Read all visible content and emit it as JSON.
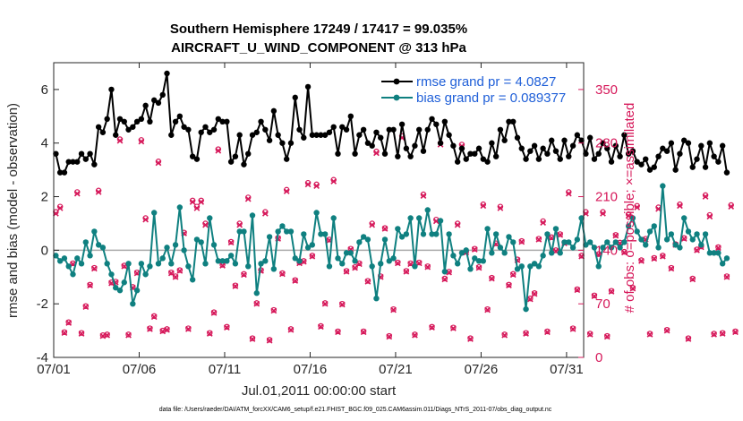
{
  "chart_data": {
    "type": "line",
    "title_line1": "Southern Hemisphere 17249 / 17417 = 99.035%",
    "title_line2": "AIRCRAFT_U_WIND_COMPONENT @ 313 hPa",
    "xlabel": "Jul.01,2011 00:00:00 start",
    "ylabel_left": "rmse and bias (model - observation)",
    "ylabel_right": "# of obs: o=possible; ×=assimilated",
    "footnote": "data file: /Users/raeder/DAI/ATM_forcXX/CAM6_setup/f.e21.FHIST_BGC.f09_025.CAM6assim.011/Diags_NTrS_2011-07/obs_diag_output.nc",
    "xlim": [
      0,
      31
    ],
    "ylim_left": [
      -4,
      7
    ],
    "ylim_right": [
      0,
      385
    ],
    "x_ticks": [
      0,
      5,
      10,
      15,
      20,
      25,
      30
    ],
    "x_tick_labels": [
      "07/01",
      "07/06",
      "07/11",
      "07/16",
      "07/21",
      "07/26",
      "07/31"
    ],
    "y_left_ticks": [
      -4,
      -2,
      0,
      2,
      4,
      6
    ],
    "y_left_tick_labels": [
      "-4",
      "-2",
      "0",
      "2",
      "4",
      "6"
    ],
    "y_right_ticks": [
      0,
      70,
      140,
      210,
      280,
      350
    ],
    "y_right_tick_labels": [
      "0",
      "70",
      "140",
      "210",
      "280",
      "350"
    ],
    "legend": {
      "placement": "top-right",
      "entries": [
        "rmse grand pr = 4.0827",
        "bias grand pr = 0.089377"
      ]
    },
    "colors": {
      "rmse": "#000000",
      "bias": "#0f8080",
      "obs": "#d6185a",
      "zero_line": "#aaaaaa",
      "legend_text": "#1f5fd8"
    },
    "dt_days": 0.25,
    "series": [
      {
        "name": "rmse",
        "values": [
          3.6,
          2.9,
          2.9,
          3.3,
          3.3,
          3.3,
          3.6,
          3.4,
          3.6,
          3.2,
          4.6,
          4.4,
          4.9,
          6.0,
          4.3,
          4.9,
          4.8,
          4.5,
          4.6,
          4.8,
          4.9,
          5.4,
          4.8,
          5.6,
          5.5,
          5.8,
          6.6,
          4.3,
          4.8,
          5.0,
          4.6,
          4.5,
          3.5,
          3.4,
          4.4,
          4.6,
          4.4,
          4.5,
          4.9,
          4.8,
          4.8,
          3.3,
          3.5,
          4.3,
          3.2,
          3.6,
          4.3,
          4.4,
          4.8,
          4.5,
          4.1,
          5.2,
          4.3,
          4.0,
          3.4,
          4.0,
          5.7,
          4.5,
          4.2,
          6.1,
          4.3,
          4.3,
          4.3,
          4.3,
          4.4,
          4.6,
          3.6,
          4.6,
          4.5,
          5.0,
          3.6,
          4.3,
          4.5,
          4.0,
          3.9,
          4.4,
          4.2,
          3.6,
          4.5,
          4.5,
          3.5,
          4.7,
          3.8,
          3.5,
          3.9,
          4.5,
          3.7,
          4.5,
          4.9,
          4.7,
          4.0,
          4.8,
          4.3,
          3.9,
          3.3,
          3.8,
          3.4,
          3.6,
          3.6,
          3.8,
          3.4,
          3.3,
          4.0,
          3.5,
          4.5,
          4.1,
          4.8,
          4.8,
          4.2,
          3.8,
          3.4,
          3.7,
          3.9,
          3.4,
          3.8,
          3.6,
          4.1,
          3.7,
          3.4,
          4.1,
          3.5,
          3.9,
          4.3,
          4.1,
          3.6,
          4.2,
          3.4,
          3.6,
          4.0,
          3.8,
          3.3,
          3.9,
          3.5,
          4.3,
          3.6,
          3.7,
          3.3,
          3.2,
          3.4,
          3.0,
          3.1,
          3.5,
          3.8,
          3.7,
          4.0,
          3.0,
          3.6,
          4.1,
          4.0,
          3.1,
          3.4,
          3.9,
          3.1,
          4.0,
          3.5,
          3.3,
          3.9,
          2.9
        ]
      },
      {
        "name": "bias",
        "values": [
          -0.2,
          -0.4,
          -0.3,
          -0.6,
          -0.9,
          -0.3,
          -0.5,
          0.3,
          -0.2,
          0.7,
          0.2,
          0.1,
          -0.5,
          -0.9,
          -1.4,
          -1.5,
          -1.2,
          -0.5,
          -2.0,
          -1.5,
          -0.5,
          -0.9,
          -0.6,
          1.4,
          -0.5,
          -0.3,
          0.1,
          -0.5,
          0.2,
          1.6,
          0.0,
          -0.6,
          -1.1,
          0.4,
          0.3,
          -0.5,
          1.2,
          0.2,
          -0.4,
          -0.4,
          -0.4,
          -0.2,
          -0.5,
          0.7,
          0.7,
          -0.6,
          1.3,
          -1.6,
          -0.5,
          -0.4,
          0.5,
          -0.7,
          0.7,
          0.9,
          0.7,
          0.7,
          -0.3,
          -0.4,
          0.6,
          0.1,
          0.2,
          1.4,
          0.6,
          0.6,
          -0.6,
          1.2,
          -0.3,
          -0.5,
          -0.1,
          -0.1,
          -0.4,
          0.3,
          0.5,
          0.4,
          -0.6,
          -1.8,
          -0.5,
          0.4,
          -0.4,
          -0.3,
          0.8,
          0.5,
          0.6,
          1.2,
          -0.6,
          1.2,
          0.6,
          1.5,
          0.6,
          0.6,
          1.1,
          -0.8,
          0.6,
          -0.2,
          -0.5,
          -0.1,
          0.0,
          -0.7,
          -0.3,
          -0.4,
          -0.4,
          0.8,
          -0.1,
          0.6,
          0.1,
          -0.1,
          0.5,
          0.3,
          -0.7,
          -0.6,
          -2.2,
          -0.6,
          -0.5,
          -0.6,
          -0.2,
          0.6,
          -0.1,
          0.8,
          -0.1,
          0.3,
          0.3,
          0.1,
          0.4,
          1.2,
          0.2,
          0.3,
          0.1,
          -0.6,
          0.1,
          0.3,
          0.1,
          0.3,
          0.1,
          0.3,
          0.9,
          1.2,
          0.7,
          0.4,
          0.2,
          0.7,
          0.9,
          0.1,
          2.4,
          0.4,
          0.6,
          0.2,
          0.1,
          1.2,
          0.7,
          0.4,
          0.6,
          0.2,
          0.6,
          -0.1,
          -0.1,
          -0.1,
          -0.5,
          -0.3
        ]
      },
      {
        "name": "obs_possible",
        "values": [
          190,
          197,
          33,
          46,
          123,
          216,
          32,
          67,
          95,
          117,
          218,
          29,
          30,
          98,
          99,
          285,
          120,
          30,
          92,
          111,
          284,
          182,
          38,
          54,
          256,
          35,
          37,
          111,
          106,
          114,
          163,
          38,
          205,
          197,
          205,
          175,
          32,
          59,
          272,
          121,
          40,
          151,
          94,
          175,
          109,
          209,
          25,
          71,
          114,
          190,
          23,
          62,
          156,
          110,
          219,
          37,
          101,
          124,
          126,
          228,
          133,
          226,
          41,
          71,
          154,
          232,
          34,
          70,
          113,
          142,
          118,
          123,
          34,
          100,
          175,
          269,
          106,
          169,
          28,
          63,
          124,
          289,
          113,
          123,
          30,
          124,
          213,
          119,
          40,
          180,
          280,
          103,
          112,
          39,
          175,
          278,
          138,
          25,
          142,
          118,
          200,
          63,
          104,
          149,
          197,
          30,
          95,
          109,
          128,
          152,
          32,
          77,
          84,
          155,
          178,
          34,
          157,
          140,
          161,
          150,
          216,
          38,
          89,
          133,
          190,
          31,
          81,
          135,
          190,
          28,
          87,
          160,
          150,
          138,
          187,
          91,
          198,
          127,
          155,
          31,
          130,
          196,
          133,
          36,
          117,
          148,
          200,
          156,
          25,
          103,
          141,
          145,
          212,
          186,
          31,
          144,
          32,
          106,
          199,
          34
        ]
      },
      {
        "name": "obs_assimilated",
        "values": [
          188,
          195,
          32,
          45,
          122,
          214,
          31,
          66,
          94,
          116,
          216,
          28,
          29,
          97,
          98,
          283,
          119,
          29,
          91,
          110,
          282,
          180,
          37,
          53,
          254,
          34,
          36,
          110,
          105,
          113,
          162,
          37,
          203,
          195,
          203,
          173,
          31,
          58,
          270,
          120,
          39,
          150,
          93,
          173,
          108,
          207,
          24,
          70,
          113,
          188,
          22,
          61,
          155,
          109,
          217,
          36,
          100,
          123,
          125,
          226,
          132,
          224,
          40,
          70,
          153,
          230,
          33,
          69,
          112,
          141,
          117,
          122,
          33,
          99,
          173,
          267,
          105,
          168,
          27,
          62,
          123,
          287,
          112,
          122,
          29,
          123,
          211,
          118,
          39,
          178,
          278,
          102,
          111,
          38,
          173,
          276,
          137,
          24,
          141,
          117,
          198,
          62,
          103,
          148,
          195,
          29,
          94,
          108,
          127,
          151,
          31,
          76,
          83,
          154,
          176,
          33,
          156,
          139,
          160,
          149,
          214,
          37,
          88,
          132,
          188,
          30,
          80,
          134,
          188,
          27,
          86,
          159,
          149,
          137,
          185,
          90,
          196,
          126,
          154,
          30,
          129,
          194,
          132,
          35,
          116,
          147,
          198,
          155,
          24,
          102,
          140,
          144,
          210,
          184,
          30,
          143,
          31,
          105,
          197,
          33
        ]
      }
    ]
  }
}
